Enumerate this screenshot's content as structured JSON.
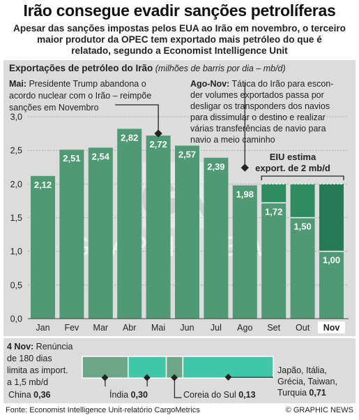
{
  "header": {
    "title": "Irão consegue evadir sanções petrolíferas",
    "subtitle_lines": [
      "Apesar das sanções impostas pelos EUA ao Irão em novembro, o terceiro",
      "maior produtor da OPEC tem exportado mais petróleo do que é",
      "relatado, segundo a Economist Intelligence Unit"
    ]
  },
  "chart_data": {
    "type": "bar",
    "title": "Exportações de petróleo do Irão",
    "unit_note": "(milhões de barris por dia – mb/d)",
    "categories": [
      "Jan",
      "Fev",
      "Mar",
      "Abr",
      "Mai",
      "Jun",
      "Jul",
      "Ago",
      "Set",
      "Out",
      "Nov"
    ],
    "highlight_category": "Nov",
    "ylim": [
      0,
      3.0
    ],
    "yticks": [
      "0,0",
      "0,5",
      "1,0",
      "1,5",
      "2,0",
      "2,5",
      "3,0"
    ],
    "grid": true,
    "series": [
      {
        "values": [
          2.12,
          2.51,
          2.54,
          2.82,
          2.72,
          2.57,
          2.39,
          1.98,
          1.72,
          1.5,
          1.0
        ],
        "labels": [
          "2,12",
          "2,51",
          "2,54",
          "2,82",
          "2,72",
          "2,57",
          "2,39",
          "1,98",
          "1,72",
          "1,50",
          "1,00"
        ]
      }
    ],
    "eiu_estimate": {
      "value": 2.0,
      "categories": [
        "Set",
        "Out",
        "Nov"
      ],
      "label_lines": [
        "EIU estima",
        "export. de 2 mb/d"
      ]
    },
    "annotations": {
      "mai": [
        "Mai: Presidente Trump abandona o",
        "acordo nuclear com o Irão – reimpõe",
        "sanções em Novembro"
      ],
      "ago_nov": [
        "Ago-Nov: Tática do Irão para escon-",
        "der volumes exportados passa por",
        "desligar os transponders dos navios",
        "para dissimular o destino e realizar",
        "várias transferências de navio para",
        "navio a meio caminho"
      ]
    },
    "waiver": {
      "note_lines": [
        "4 Nov: Renúncia",
        "de 180 dias",
        "limita as import.",
        "a 1,5 mb/d"
      ],
      "segments": [
        {
          "name": "China",
          "value": 0.36,
          "label": "0,36"
        },
        {
          "name": "Índia",
          "value": 0.3,
          "label": "0,30"
        },
        {
          "name": "Coreia do Sul",
          "value": 0.13,
          "label": "0,13"
        },
        {
          "name": "Japão, Itália, Grécia, Taiwan, Turquia",
          "value": 0.71,
          "label": "0,71"
        }
      ],
      "others_label_lines": [
        "Japão, Itália,",
        "Grécia, Taiwan,",
        "Turquia"
      ]
    }
  },
  "colors": {
    "panel_bg": "#dcdcdc",
    "bar": "#4f9a75",
    "bar_dark": "#267a55",
    "bar_light": "#2f8c62",
    "accent": "#3fc7a8",
    "waiver_bar": "#6aa687",
    "text": "#222222"
  },
  "watermark": "GRAPHIC NEWS",
  "footer": {
    "source": "Fonte: Economist Intelligence Unit-relatório CargoMetrics",
    "credit": "© GRAPHIC NEWS"
  }
}
